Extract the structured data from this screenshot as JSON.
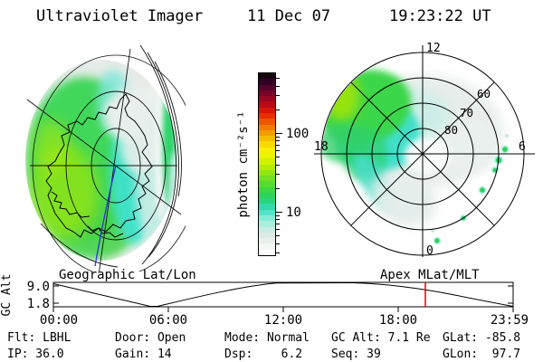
{
  "header": {
    "title": "Ultraviolet Imager",
    "date": "11 Dec 07",
    "time": "19:23:22 UT"
  },
  "geo_panel": {
    "caption": "Geographic Lat/Lon"
  },
  "apex_panel": {
    "caption": "Apex MLat/MLT",
    "mlt_top": "12",
    "mlt_left": "18",
    "mlt_right": "6",
    "mlt_bottom": "0",
    "ring_labels": [
      "80",
      "70",
      "60"
    ]
  },
  "colorbar": {
    "unit_label": "photon cm⁻²s⁻¹",
    "tick_labels": [
      "100",
      "10"
    ],
    "major_ticks": [
      100,
      10
    ],
    "minor_ticks": [
      3,
      4,
      5,
      6,
      7,
      8,
      9,
      20,
      30,
      40,
      50,
      60,
      70,
      80,
      90,
      200,
      300,
      400,
      500
    ],
    "scale": "log",
    "colors": [
      "#ffffff",
      "#f4f7f4",
      "#e9efec",
      "#dcebe5",
      "#c9ede3",
      "#aaeede",
      "#83ecd9",
      "#55e3c8",
      "#33d9a8",
      "#28d57f",
      "#2dd45c",
      "#3cd743",
      "#54dc2f",
      "#72e11f",
      "#92e712",
      "#b3ec08",
      "#d2f101",
      "#e9f400",
      "#f7ef00",
      "#f8d900",
      "#f6bc00",
      "#f49d00",
      "#f17b00",
      "#ee5500",
      "#e92e00",
      "#d61507",
      "#b90a15",
      "#980721",
      "#760429",
      "#53022a",
      "#310223",
      "#15060f"
    ]
  },
  "strip": {
    "ylabel": "GC Alt",
    "yticks": [
      "9.0",
      "1.8"
    ],
    "xticks": [
      "00:00",
      "06:00",
      "12:00",
      "18:00",
      "23:59"
    ],
    "marker_color": "#e80000"
  },
  "status": {
    "rows": [
      [
        "Flt: LBHL",
        "Door: Open",
        "Mode: Normal",
        "GC Alt: 7.1 Re",
        "GLat: -85.8"
      ],
      [
        "IP: 36.0",
        "Gain: 14",
        "Dsp:    6.2",
        "Seq: 39",
        "GLon:  97.7"
      ]
    ]
  },
  "colors": {
    "aurora_green": "#3fd75a",
    "aurora_cyan": "#41e2cd",
    "aurora_yellow": "#a8e90e",
    "pale_emission": "#e9efec",
    "marker_red": "#e80000",
    "meridian_blue": "#2b35d6"
  },
  "chart_data": [
    {
      "type": "heatmap",
      "panel": "left",
      "title": "Geographic Lat/Lon",
      "content": "UV imager auroral emission projected onto southern-hemisphere geographic polar map with Antarctica coastline; bright green/yellow-green emission over left half of disk, cyan band and pale dayglow toward right limb",
      "units": "photon cm-2 s-1",
      "scale": "log",
      "colorbar_ticks": [
        10,
        100
      ]
    },
    {
      "type": "heatmap",
      "panel": "right",
      "title": "Apex MLat/MLT",
      "content": "Same UV image in Apex magnetic latitude / magnetic local time polar coordinates; green auroral oval segment in pre-noon/dusk (upper-left) sector, cyan arc toward midnight, discrete green spots near dawn (right) side",
      "mlat_rings": [
        80,
        70,
        60,
        50
      ],
      "mlt_spokes": [
        0,
        6,
        12,
        18
      ],
      "units": "photon cm-2 s-1",
      "scale": "log",
      "colorbar_ticks": [
        10,
        100
      ]
    },
    {
      "type": "line",
      "title": "GC Alt",
      "ylabel": "GC Alt (Re)",
      "yticks": [
        9.0,
        1.8
      ],
      "xtick_labels": [
        "00:00",
        "06:00",
        "12:00",
        "18:00",
        "23:59"
      ],
      "x_hours": [
        0,
        2,
        4,
        5.2,
        6,
        8,
        10,
        12,
        14,
        16,
        18,
        19.39,
        21,
        22.5,
        23.98
      ],
      "values_re": [
        9.8,
        6.6,
        2.4,
        0.5,
        1.3,
        4.4,
        7.0,
        9.2,
        10.2,
        10.1,
        8.2,
        7.1,
        5.0,
        3.0,
        0.5
      ],
      "marker_hour": 19.39,
      "marker_value_re": 7.1
    }
  ]
}
